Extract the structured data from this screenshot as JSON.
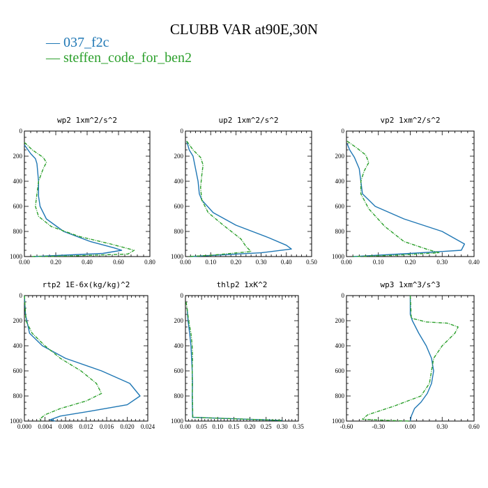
{
  "figure": {
    "title": "CLUBB VAR at90E,30N",
    "legend": [
      {
        "label": "— 037_f2c",
        "color": "#1f77b4"
      },
      {
        "label": "— steffen_code_for_ben2",
        "color": "#2ca02c"
      }
    ]
  },
  "chart_data": [
    {
      "type": "line",
      "title": "wp2  1xm^2/s^2",
      "xlim": [
        0,
        0.8
      ],
      "ylim": [
        0,
        1000
      ],
      "y_inverted": true,
      "xticks": [
        "0.00",
        "0.20",
        "0.40",
        "0.60",
        "0.80"
      ],
      "xtick_values": [
        0,
        0.2,
        0.4,
        0.6,
        0.8
      ],
      "yticks": [
        "0",
        "200",
        "400",
        "600",
        "800",
        "1000"
      ],
      "series": [
        {
          "color": "#1f77b4",
          "dashed": false,
          "x": [
            0,
            0.04,
            0.07,
            0.08,
            0.09,
            0.09,
            0.1,
            0.14,
            0.25,
            0.42,
            0.57,
            0.62,
            0.5,
            0.06
          ],
          "y": [
            110,
            180,
            220,
            260,
            400,
            520,
            600,
            700,
            800,
            880,
            930,
            950,
            975,
            1000
          ]
        },
        {
          "color": "#2ca02c",
          "dashed": true,
          "x": [
            0,
            0.05,
            0.12,
            0.14,
            0.12,
            0.09,
            0.08,
            0.07,
            0.09,
            0.17,
            0.35,
            0.55,
            0.7,
            0.66,
            0.3,
            0.05
          ],
          "y": [
            90,
            150,
            210,
            250,
            300,
            400,
            500,
            600,
            680,
            760,
            840,
            900,
            950,
            980,
            995,
            1000
          ]
        }
      ]
    },
    {
      "type": "line",
      "title": "up2  1xm^2/s^2",
      "xlim": [
        0,
        0.5
      ],
      "ylim": [
        0,
        1000
      ],
      "y_inverted": true,
      "xticks": [
        "0.00",
        "0.10",
        "0.20",
        "0.30",
        "0.40",
        "0.50"
      ],
      "xtick_values": [
        0,
        0.1,
        0.2,
        0.3,
        0.4,
        0.5
      ],
      "yticks": [
        "0",
        "200",
        "400",
        "600",
        "800",
        "1000"
      ],
      "series": [
        {
          "color": "#1f77b4",
          "dashed": false,
          "x": [
            0.005,
            0.015,
            0.03,
            0.04,
            0.05,
            0.055,
            0.065,
            0.11,
            0.2,
            0.33,
            0.4,
            0.42,
            0.3,
            0.02
          ],
          "y": [
            80,
            150,
            200,
            300,
            400,
            500,
            550,
            650,
            750,
            850,
            910,
            940,
            970,
            1000
          ]
        },
        {
          "color": "#2ca02c",
          "dashed": true,
          "x": [
            0.005,
            0.03,
            0.06,
            0.07,
            0.065,
            0.06,
            0.065,
            0.09,
            0.15,
            0.22,
            0.24,
            0.26,
            0.1,
            0.01
          ],
          "y": [
            80,
            150,
            210,
            270,
            350,
            450,
            550,
            650,
            750,
            860,
            920,
            960,
            990,
            1000
          ]
        }
      ]
    },
    {
      "type": "line",
      "title": "vp2  1xm^2/s^2",
      "xlim": [
        0,
        0.4
      ],
      "ylim": [
        0,
        1000
      ],
      "y_inverted": true,
      "xticks": [
        "0.00",
        "0.10",
        "0.20",
        "0.30",
        "0.40"
      ],
      "xtick_values": [
        0,
        0.1,
        0.2,
        0.3,
        0.4
      ],
      "yticks": [
        "0",
        "200",
        "400",
        "600",
        "800",
        "1000"
      ],
      "series": [
        {
          "color": "#1f77b4",
          "dashed": false,
          "x": [
            0.002,
            0.01,
            0.025,
            0.04,
            0.045,
            0.05,
            0.09,
            0.18,
            0.3,
            0.37,
            0.36,
            0.2,
            0.02
          ],
          "y": [
            100,
            150,
            210,
            300,
            400,
            500,
            600,
            700,
            800,
            900,
            950,
            975,
            1000
          ]
        },
        {
          "color": "#2ca02c",
          "dashed": true,
          "x": [
            0.002,
            0.03,
            0.06,
            0.07,
            0.055,
            0.045,
            0.045,
            0.07,
            0.12,
            0.18,
            0.25,
            0.29,
            0.15,
            0.02
          ],
          "y": [
            80,
            130,
            190,
            250,
            320,
            400,
            500,
            620,
            760,
            880,
            940,
            970,
            990,
            1000
          ]
        }
      ]
    },
    {
      "type": "line",
      "title": "rtp2  1E-6x(kg/kg)^2",
      "xlim": [
        0,
        0.024
      ],
      "ylim": [
        0,
        1000
      ],
      "y_inverted": true,
      "xticks": [
        "0.000",
        "0.004",
        "0.008",
        "0.012",
        "0.016",
        "0.020",
        "0.024"
      ],
      "xtick_values": [
        0,
        0.004,
        0.008,
        0.012,
        0.016,
        0.02,
        0.024
      ],
      "yticks": [
        "0",
        "200",
        "400",
        "600",
        "800",
        "1000"
      ],
      "series": [
        {
          "color": "#1f77b4",
          "dashed": false,
          "x": [
            0,
            0.0002,
            0.001,
            0.0035,
            0.008,
            0.015,
            0.0205,
            0.0225,
            0.02,
            0.013,
            0.007,
            0.005,
            0.006
          ],
          "y": [
            0,
            150,
            300,
            400,
            500,
            600,
            700,
            800,
            870,
            920,
            960,
            990,
            1000
          ]
        },
        {
          "color": "#2ca02c",
          "dashed": true,
          "x": [
            0,
            0.0003,
            0.0015,
            0.004,
            0.007,
            0.011,
            0.014,
            0.015,
            0.012,
            0.007,
            0.004,
            0.003,
            0.003
          ],
          "y": [
            0,
            200,
            300,
            400,
            500,
            600,
            700,
            780,
            840,
            900,
            950,
            985,
            1000
          ]
        }
      ]
    },
    {
      "type": "line",
      "title": "thlp2  1xK^2",
      "xlim": [
        0,
        0.35
      ],
      "ylim": [
        0,
        1000
      ],
      "y_inverted": true,
      "xticks": [
        "0.00",
        "0.05",
        "0.10",
        "0.15",
        "0.20",
        "0.25",
        "0.30",
        "0.35"
      ],
      "xtick_values": [
        0,
        0.05,
        0.1,
        0.15,
        0.2,
        0.25,
        0.3,
        0.35
      ],
      "yticks": [
        "0",
        "200",
        "400",
        "600",
        "800",
        "1000"
      ],
      "series": [
        {
          "color": "#1f77b4",
          "dashed": false,
          "x": [
            0.005,
            0.008,
            0.013,
            0.017,
            0.019,
            0.021,
            0.022,
            0.021,
            0.022,
            0.3
          ],
          "y": [
            100,
            200,
            300,
            400,
            500,
            600,
            700,
            800,
            970,
            995
          ]
        },
        {
          "color": "#2ca02c",
          "dashed": true,
          "x": [
            0.002,
            0.005,
            0.01,
            0.017,
            0.021,
            0.022,
            0.021,
            0.021,
            0.023,
            0.3
          ],
          "y": [
            50,
            100,
            200,
            300,
            400,
            500,
            600,
            700,
            970,
            995
          ]
        }
      ]
    },
    {
      "type": "line",
      "title": "wp3  1xm^3/s^3",
      "xlim": [
        -0.6,
        0.6
      ],
      "ylim": [
        0,
        1000
      ],
      "y_inverted": true,
      "xticks": [
        "-0.60",
        "-0.30",
        "0.00",
        "0.30",
        "0.60"
      ],
      "xtick_values": [
        -0.6,
        -0.3,
        0,
        0.3,
        0.6
      ],
      "yticks": [
        "0",
        "200",
        "400",
        "600",
        "800",
        "1000"
      ],
      "series": [
        {
          "color": "#1f77b4",
          "dashed": false,
          "x": [
            0,
            0,
            0.02,
            0.08,
            0.15,
            0.2,
            0.22,
            0.2,
            0.16,
            0.1,
            0.04,
            0.01,
            0
          ],
          "y": [
            0,
            150,
            200,
            300,
            400,
            500,
            600,
            700,
            780,
            850,
            900,
            960,
            1000
          ]
        },
        {
          "color": "#2ca02c",
          "dashed": true,
          "x": [
            0,
            0.01,
            0.15,
            0.35,
            0.45,
            0.42,
            0.3,
            0.22,
            0.2,
            0.18,
            0.1,
            -0.15,
            -0.4,
            -0.45,
            -0.2,
            0
          ],
          "y": [
            0,
            180,
            210,
            220,
            250,
            300,
            400,
            500,
            600,
            700,
            800,
            880,
            950,
            985,
            995,
            1000
          ]
        }
      ]
    }
  ]
}
